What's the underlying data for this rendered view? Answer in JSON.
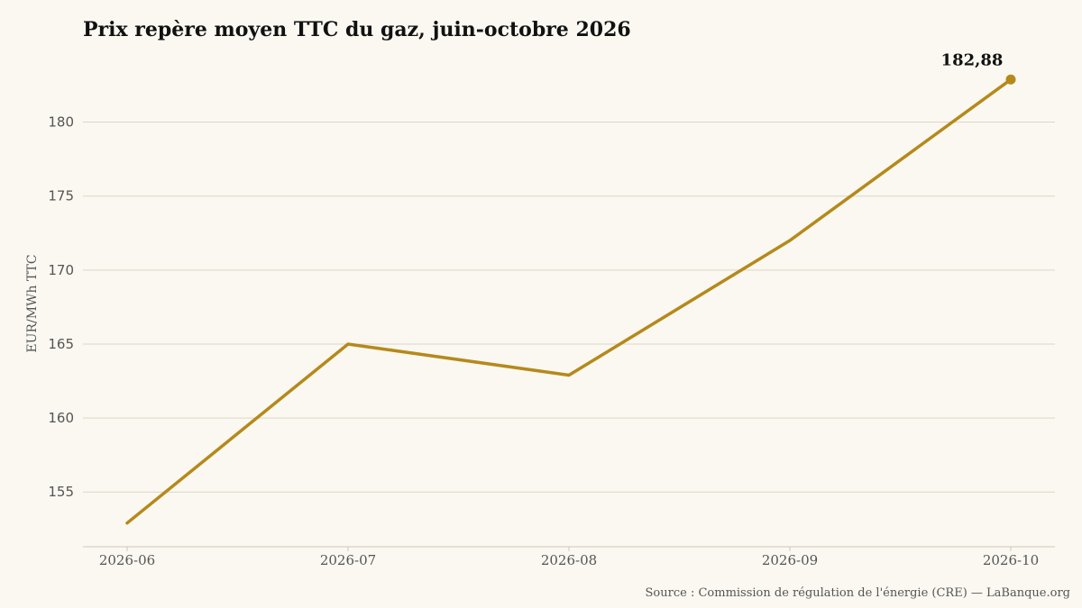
{
  "chart_data": {
    "type": "line",
    "title": "Prix repère moyen TTC du gaz, juin-octobre 2026",
    "xlabel": "",
    "ylabel": "EUR/MWh TTC",
    "categories": [
      "2026-06",
      "2026-07",
      "2026-08",
      "2026-09",
      "2026-10"
    ],
    "series": [
      {
        "values": [
          152.9,
          165.0,
          162.9,
          172.0,
          182.88
        ]
      }
    ],
    "yticks": [
      155,
      160,
      165,
      170,
      175,
      180
    ],
    "ylim": [
      151.3,
      184.6
    ],
    "grid": true,
    "annotations": [
      {
        "category": "2026-10",
        "value": 182.88,
        "label": "182,88"
      }
    ],
    "colors": {
      "line": "#b5891b",
      "grid": "#ddd6c6",
      "axis": "#cfc8b8",
      "background": "#faf8f1"
    },
    "source": "Source : Commission de régulation de l'énergie (CRE) — LaBanque.org"
  }
}
